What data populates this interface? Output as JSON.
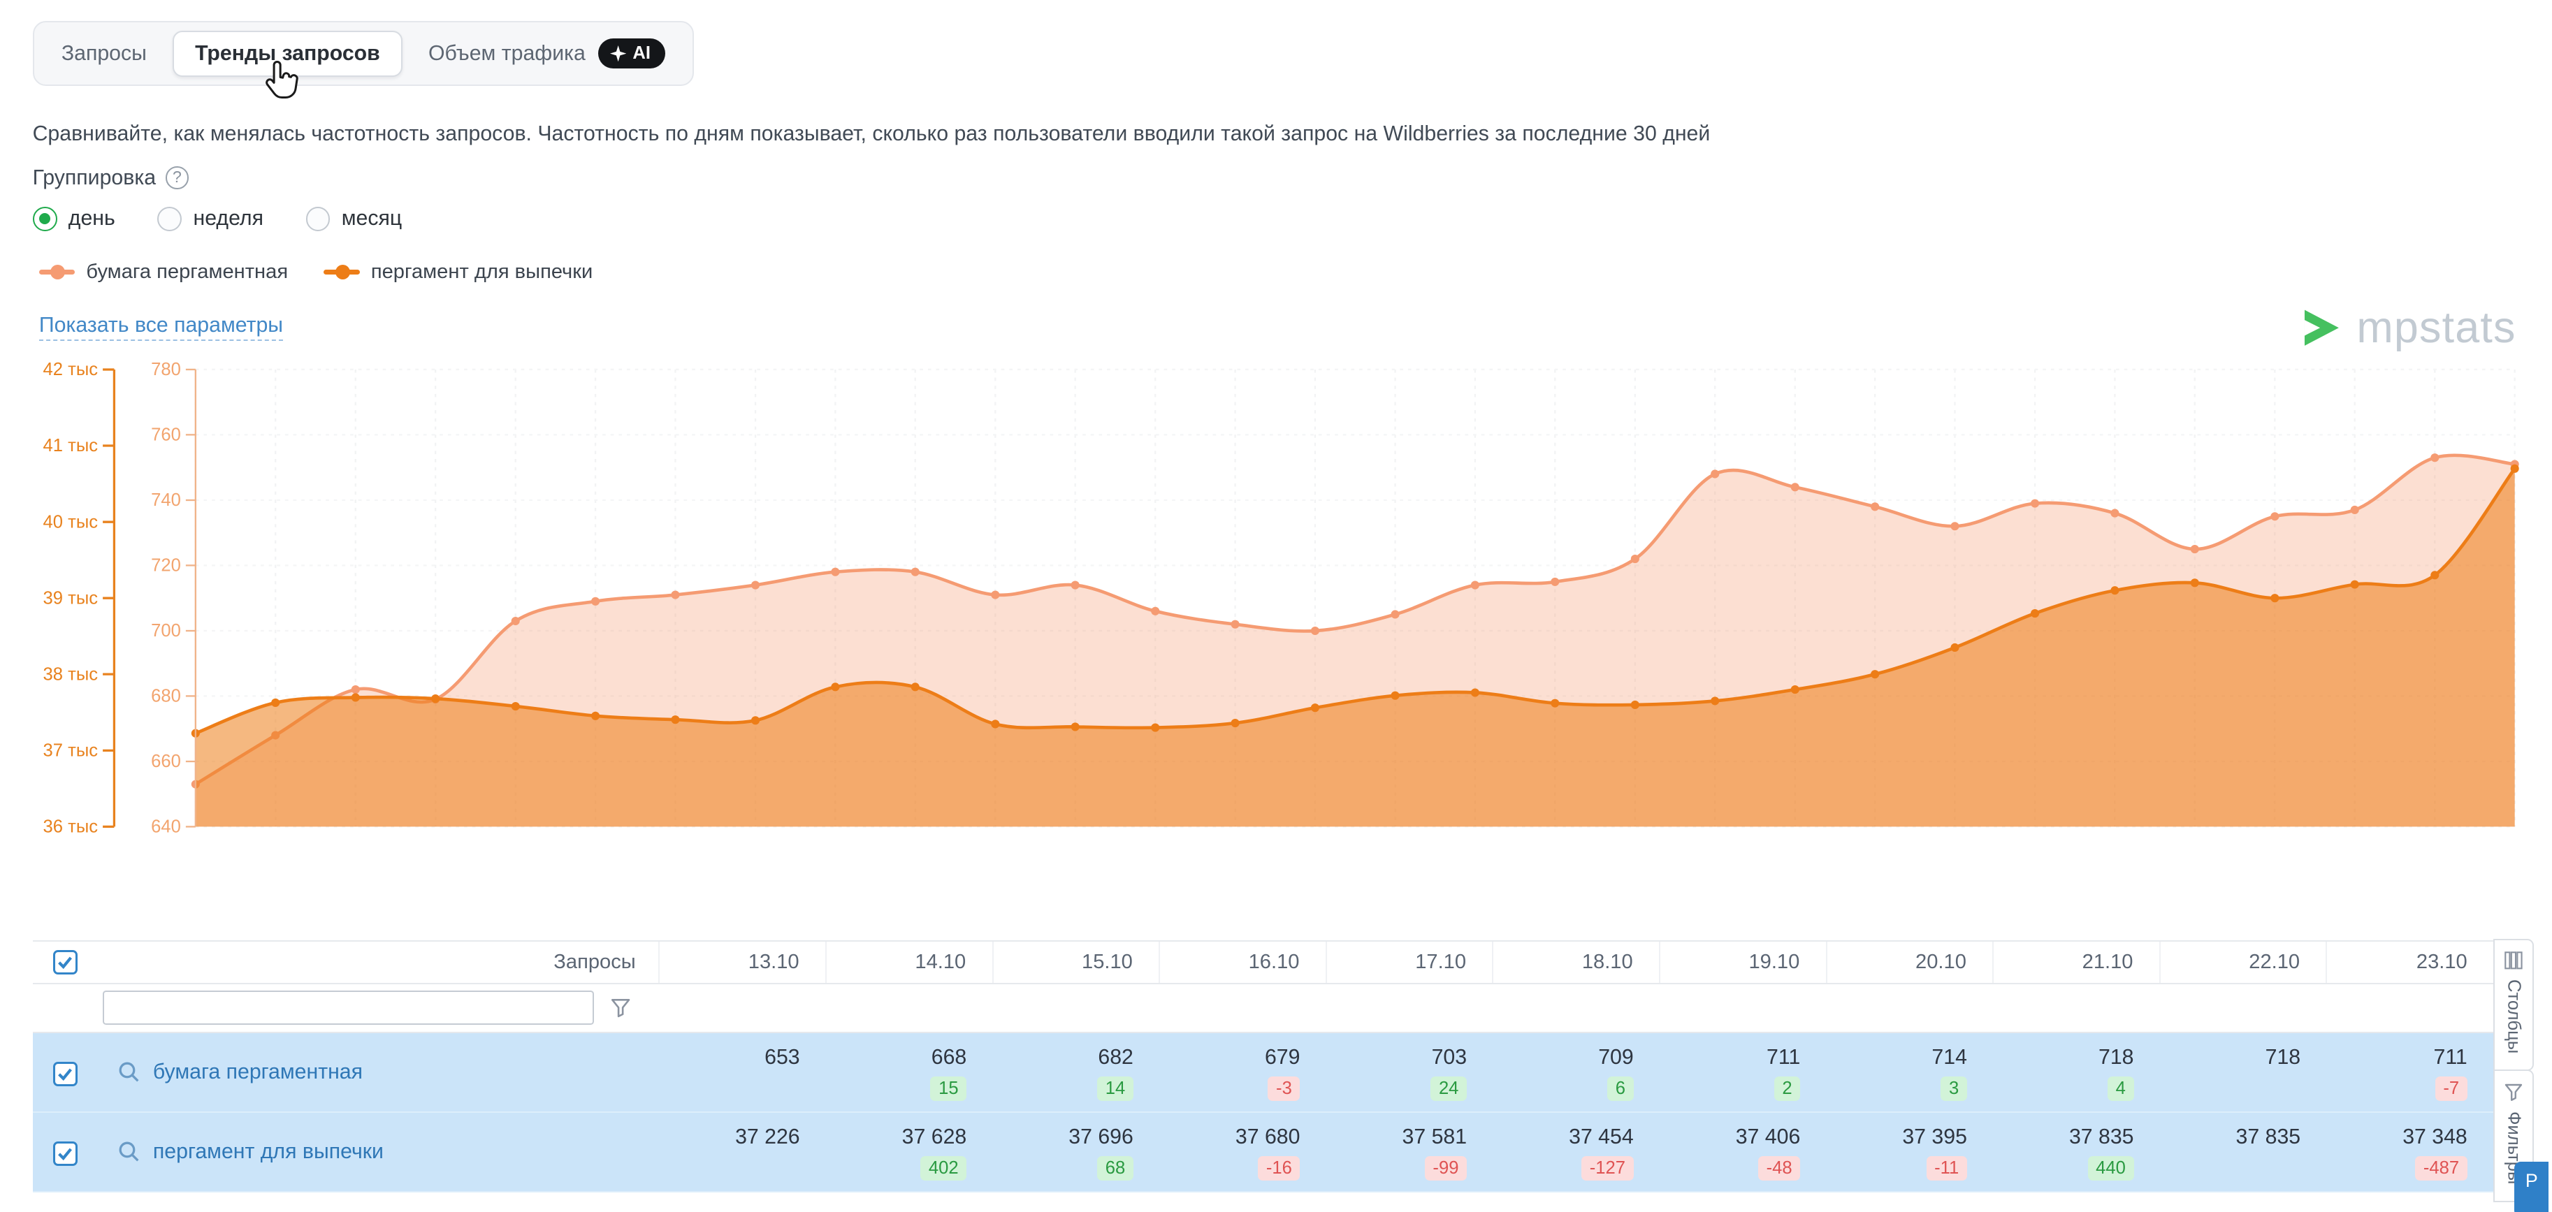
{
  "tabs": {
    "items": [
      {
        "label": "Запросы",
        "active": false
      },
      {
        "label": "Тренды запросов",
        "active": true
      },
      {
        "label": "Объем трафика",
        "active": false,
        "ai_badge": "AI"
      }
    ]
  },
  "description": "Сравнивайте, как менялась частотность запросов. Частотность по дням показывает, сколько раз пользователи вводили такой запрос на Wildberries за последние 30 дней",
  "grouping": {
    "label": "Группировка",
    "options": [
      {
        "label": "день",
        "selected": true
      },
      {
        "label": "неделя",
        "selected": false
      },
      {
        "label": "месяц",
        "selected": false
      }
    ]
  },
  "legend": {
    "items": [
      {
        "label": "бумага пергаментная",
        "color": "#f59b72"
      },
      {
        "label": "пергамент для выпечки",
        "color": "#ed7d17"
      }
    ]
  },
  "links": {
    "show_all_params": "Показать все параметры"
  },
  "brand": {
    "name": "mpstats",
    "logo_color": "#45c05f",
    "text_color": "#c2cad2"
  },
  "chart_data": {
    "type": "area",
    "grid": true,
    "legend_position": "top-left",
    "axes": {
      "left_outer": {
        "ticks": [
          "42 тыс",
          "41 тыс",
          "40 тыс",
          "39 тыс",
          "38 тыс",
          "37 тыс",
          "36 тыс"
        ],
        "min": 36000,
        "max": 42000,
        "color": "#e8821e"
      },
      "left_inner": {
        "ticks": [
          "780",
          "760",
          "740",
          "720",
          "700",
          "680",
          "660",
          "640"
        ],
        "min": 640,
        "max": 780,
        "color": "#f2a46e"
      }
    },
    "series": [
      {
        "name": "бумага пергаментная",
        "axis": "left_inner",
        "color": "#f59b72",
        "fill_opacity": 0.32,
        "values": [
          653,
          668,
          682,
          679,
          703,
          709,
          711,
          714,
          718,
          718,
          711,
          714,
          706,
          702,
          700,
          705,
          714,
          715,
          722,
          748,
          744,
          738,
          732,
          739,
          736,
          725,
          735,
          737,
          753,
          751
        ]
      },
      {
        "name": "пергамент для выпечки",
        "axis": "left_outer",
        "color": "#ed7d17",
        "fill_opacity": 0.55,
        "values": [
          37226,
          37628,
          37696,
          37680,
          37581,
          37454,
          37406,
          37395,
          37835,
          37835,
          37348,
          37310,
          37300,
          37360,
          37560,
          37720,
          37760,
          37620,
          37600,
          37650,
          37800,
          38000,
          38350,
          38800,
          39100,
          39200,
          39000,
          39180,
          39300,
          40700
        ]
      }
    ]
  },
  "table": {
    "select_all_checked": true,
    "query_column_label": "Запросы",
    "filter_input_value": "",
    "dates": [
      "13.10",
      "14.10",
      "15.10",
      "16.10",
      "17.10",
      "18.10",
      "19.10",
      "20.10",
      "21.10",
      "22.10",
      "23.10"
    ],
    "rows": [
      {
        "query": "бумага пергаментная",
        "checked": true,
        "values": [
          "653",
          "668",
          "682",
          "679",
          "703",
          "709",
          "711",
          "714",
          "718",
          "718",
          "711"
        ],
        "deltas": [
          "",
          "15",
          "14",
          "-3",
          "24",
          "6",
          "2",
          "3",
          "4",
          "",
          "-7"
        ]
      },
      {
        "query": "пергамент для выпечки",
        "checked": true,
        "values": [
          "37 226",
          "37 628",
          "37 696",
          "37 680",
          "37 581",
          "37 454",
          "37 406",
          "37 395",
          "37 835",
          "37 835",
          "37 348"
        ],
        "deltas": [
          "",
          "402",
          "68",
          "-16",
          "-99",
          "-127",
          "-48",
          "-11",
          "440",
          "",
          "-487"
        ]
      }
    ],
    "badge_colors": {
      "positive_bg": "#d2f3d8",
      "positive_text": "#2a9a41",
      "negative_bg": "#fcdcdc",
      "negative_text": "#df5353"
    }
  },
  "side_panel": {
    "tabs": [
      {
        "label": "Столбцы"
      },
      {
        "label": "Фильтры"
      }
    ],
    "bottom_tab": {
      "label": "Р",
      "color": "#2f80c8"
    }
  }
}
